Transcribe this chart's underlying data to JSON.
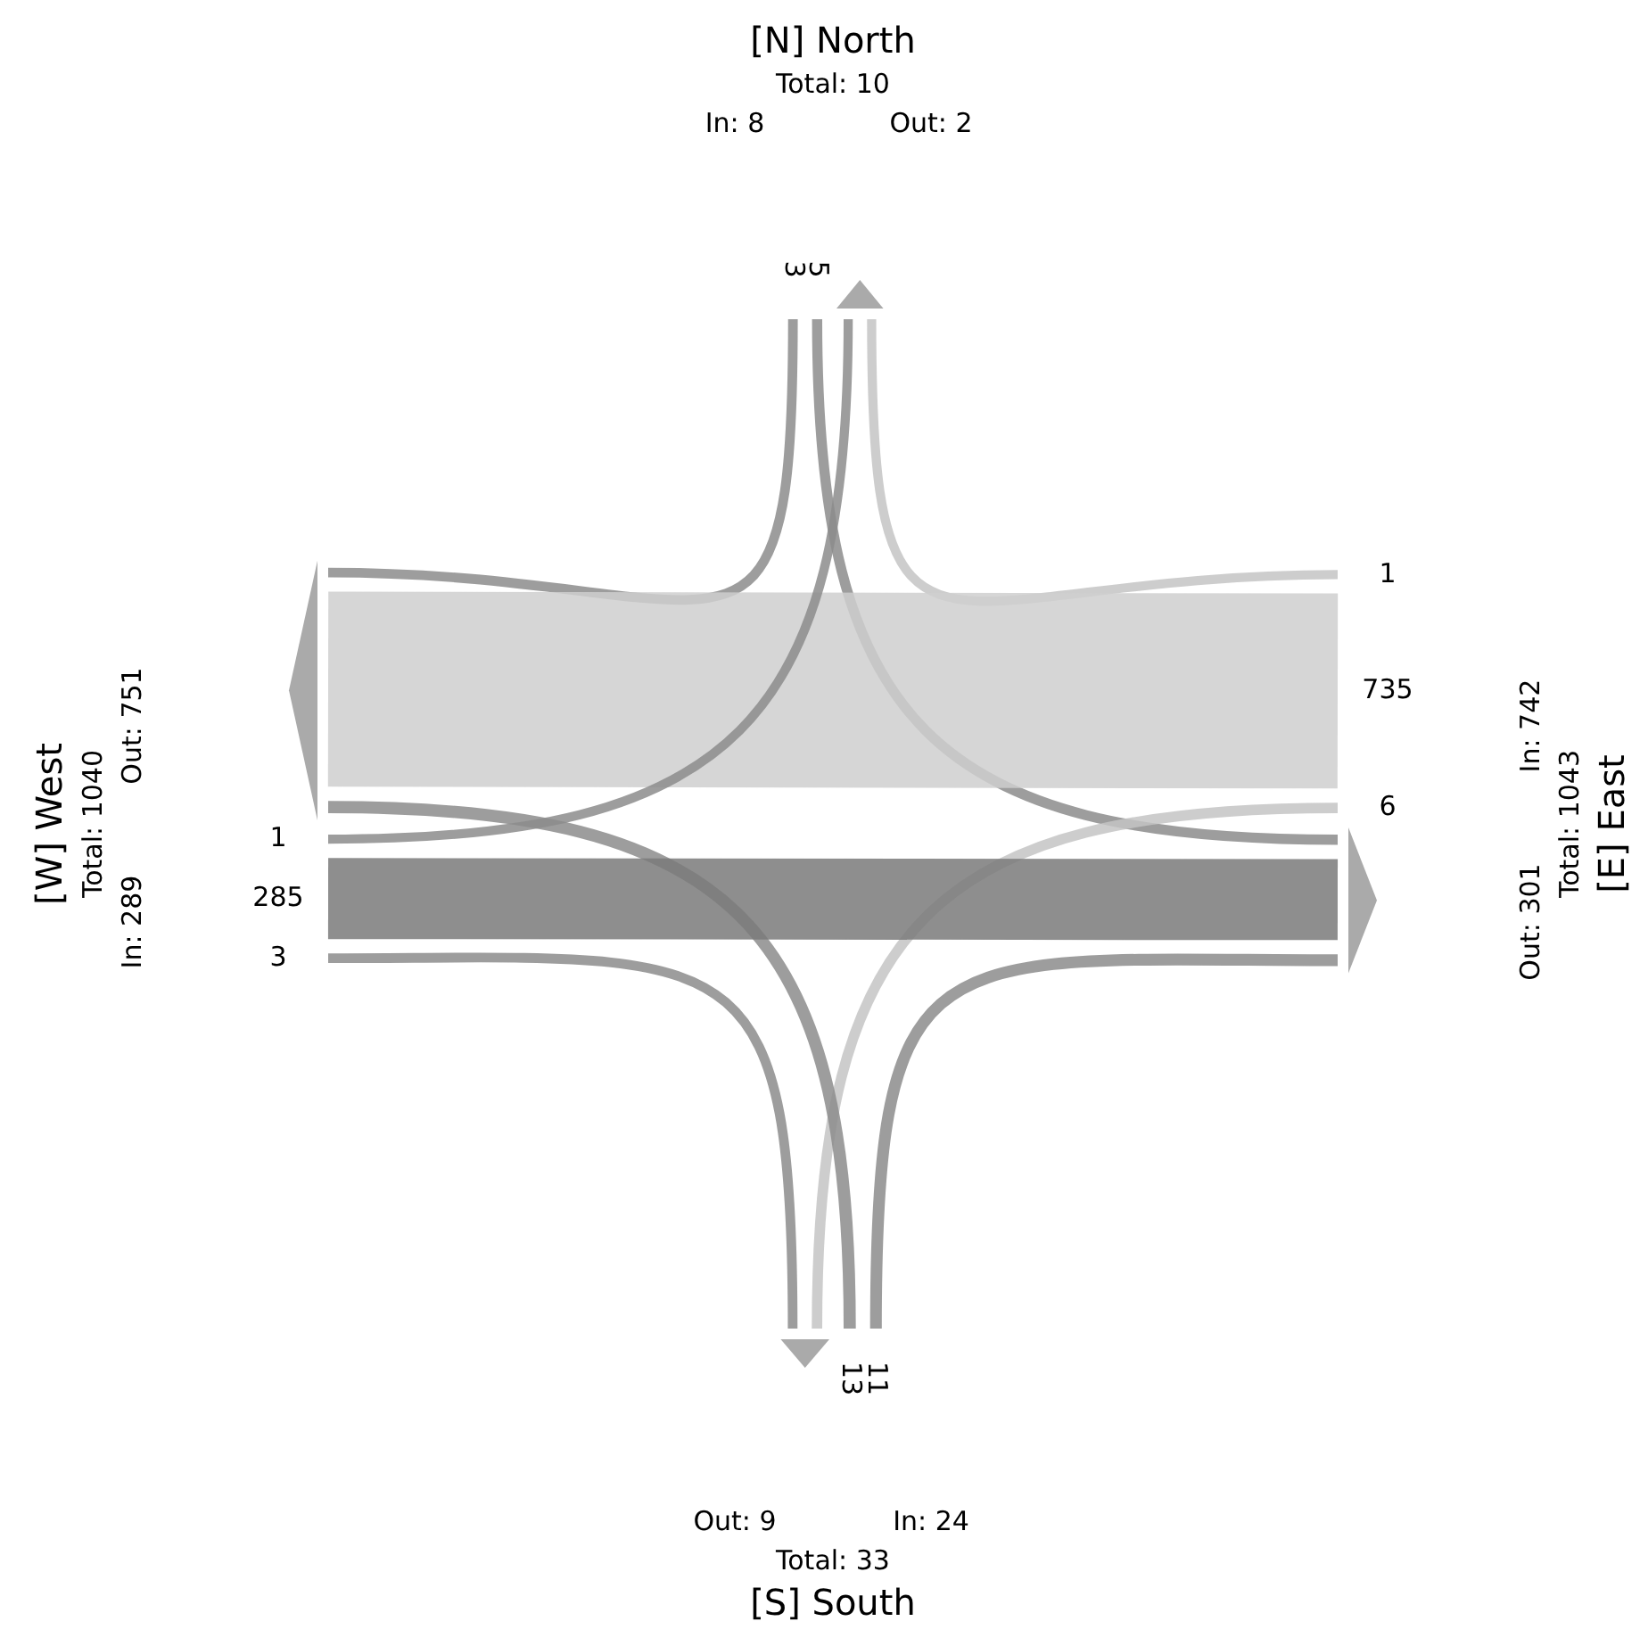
{
  "chart_data": {
    "type": "other",
    "categories": [
      "[N] North",
      "[E] East",
      "[S] South",
      "[W] West"
    ],
    "annotations": [
      "Total: 10",
      "In: 8",
      "Out: 2",
      "Total: 1043",
      "In: 742",
      "Out: 301",
      "Total: 33",
      "In: 24",
      "Out: 9",
      "Total: 1040",
      "In: 289",
      "Out: 751"
    ],
    "series": [
      {
        "values": [
          null,
          1,
          null,
          1
        ],
        "colors": [
          null,
          "#c4c4c4",
          null,
          "#8c8c8c"
        ]
      },
      {
        "values": [
          5,
          null,
          11,
          285
        ],
        "colors": [
          "#8c8c8c",
          null,
          "#8c8c8c",
          "#7a7a7a"
        ]
      },
      {
        "values": [
          null,
          6,
          null,
          3
        ],
        "colors": [
          null,
          "#c4c4c4",
          null,
          "#8c8c8c"
        ]
      },
      {
        "values": [
          3,
          735,
          13,
          null
        ],
        "colors": [
          "#8c8c8c",
          "#cfcfcf",
          "#8c8c8c",
          null
        ]
      }
    ],
    "data_labels": true
  }
}
